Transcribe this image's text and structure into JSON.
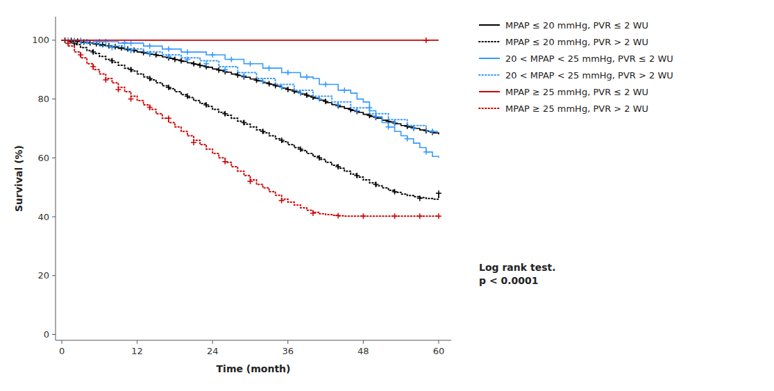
{
  "chart_data": {
    "type": "step",
    "xlabel": "Time (month)",
    "ylabel": "Survival (%)",
    "xlim": [
      -1,
      62
    ],
    "ylim": [
      -2,
      108
    ],
    "xticks": [
      0,
      12,
      24,
      36,
      48,
      60
    ],
    "yticks": [
      0,
      20,
      40,
      60,
      80,
      100
    ],
    "grid": false,
    "legend": "right",
    "marker": "plus",
    "annotation": "Log rank test.\np < 0.0001",
    "series": [
      {
        "name": "MPAP ≤ 20 mmHg, PVR ≤ 2 WU",
        "color": "#000000",
        "line_style": "solid",
        "x": [
          0,
          0.5,
          1,
          2,
          3,
          4,
          5,
          6,
          7,
          8,
          9,
          10,
          11,
          12,
          13,
          14,
          15,
          16,
          17,
          18,
          19,
          20,
          21,
          22,
          23,
          24,
          25,
          26,
          27,
          28,
          29,
          30,
          31,
          32,
          33,
          34,
          35,
          36,
          37,
          38,
          39,
          40,
          41,
          42,
          43,
          44,
          45,
          46,
          47,
          48,
          49,
          50,
          51,
          52,
          53,
          54,
          55,
          56,
          57,
          58,
          59,
          60
        ],
        "values": [
          100,
          100,
          99.8,
          99.6,
          99.3,
          99.0,
          98.7,
          98.3,
          98.0,
          97.6,
          97.2,
          96.8,
          96.4,
          96.0,
          95.6,
          95.2,
          94.8,
          94.3,
          93.8,
          93.3,
          92.8,
          92.3,
          91.8,
          91.3,
          90.8,
          90.2,
          89.7,
          89.1,
          88.5,
          88.0,
          87.4,
          86.8,
          86.2,
          85.5,
          85.0,
          84.4,
          83.7,
          83.1,
          82.4,
          81.7,
          81.0,
          80.3,
          79.6,
          78.8,
          78.1,
          77.4,
          76.8,
          76.1,
          75.5,
          74.8,
          74.1,
          73.5,
          72.8,
          72.2,
          71.6,
          71.0,
          70.5,
          70.0,
          69.5,
          69.0,
          68.5,
          68.0
        ],
        "censor_x": [
          0.5,
          1.5,
          2.5,
          3.5,
          4.5,
          5.5,
          6.5,
          7.5,
          8.5,
          9.5,
          10.5,
          11.5,
          13,
          14,
          15,
          17,
          18,
          19,
          21,
          22,
          23,
          25,
          26,
          28,
          29,
          31,
          33,
          34,
          36,
          37,
          39,
          40,
          42,
          44,
          46,
          47,
          49,
          50,
          52,
          53,
          55,
          56,
          58,
          59
        ],
        "censor_y": [
          100,
          99.9,
          99.7,
          99.4,
          99.1,
          98.8,
          98.5,
          98.1,
          97.8,
          97.4,
          97.0,
          96.6,
          95.8,
          95.4,
          95.0,
          94.0,
          93.5,
          93.0,
          92.0,
          91.5,
          91.0,
          89.9,
          89.3,
          88.2,
          87.6,
          86.4,
          85.2,
          84.6,
          83.3,
          82.7,
          81.3,
          80.6,
          79.2,
          77.7,
          76.4,
          75.8,
          74.4,
          73.8,
          72.4,
          71.8,
          70.7,
          70.2,
          69.2,
          68.7
        ]
      },
      {
        "name": "MPAP ≤ 20 mmHg, PVR > 2 WU",
        "color": "#000000",
        "line_style": "dotted",
        "x": [
          0,
          1,
          2,
          3,
          4,
          5,
          6,
          7,
          8,
          9,
          10,
          11,
          12,
          13,
          14,
          15,
          16,
          17,
          18,
          19,
          20,
          21,
          22,
          23,
          24,
          25,
          26,
          27,
          28,
          29,
          30,
          31,
          32,
          33,
          34,
          35,
          36,
          37,
          38,
          39,
          40,
          41,
          42,
          43,
          44,
          45,
          46,
          47,
          48,
          49,
          50,
          51,
          52,
          53,
          54,
          55,
          56,
          57,
          58,
          59,
          60
        ],
        "values": [
          100,
          99.5,
          98.5,
          97.5,
          96.5,
          95.5,
          94.5,
          93.5,
          92.5,
          91.5,
          90.5,
          89.5,
          88.5,
          87.5,
          86.5,
          85.5,
          84.5,
          83.5,
          82.5,
          81.5,
          80.5,
          79.5,
          78.5,
          77.5,
          76.5,
          75.5,
          74.5,
          73.5,
          72.5,
          71.5,
          70.5,
          69.5,
          68.5,
          67.5,
          66.5,
          65.5,
          64.5,
          63.5,
          62.5,
          61.5,
          60.5,
          59.5,
          58.5,
          57.5,
          56.5,
          55.5,
          54.5,
          53.5,
          52.5,
          51.5,
          50.5,
          49.8,
          49.0,
          48.3,
          47.7,
          47.2,
          46.8,
          46.5,
          46.2,
          46.0,
          48.0
        ],
        "censor_x": [
          2,
          5,
          8,
          11,
          14,
          17,
          20,
          23,
          26,
          29,
          32,
          35,
          38,
          41,
          44,
          47,
          50,
          53,
          57,
          60
        ],
        "censor_y": [
          99.0,
          96.0,
          93.0,
          90.0,
          87.0,
          84.0,
          81.0,
          78.0,
          75.0,
          72.0,
          69.0,
          66.0,
          63.0,
          60.0,
          57.0,
          54.0,
          51.0,
          48.5,
          46.3,
          48.0
        ]
      },
      {
        "name": "20 < MPAP < 25 mmHg, PVR ≤ 2 WU",
        "color": "#3399ff",
        "line_style": "solid",
        "x": [
          0,
          4,
          5,
          8,
          9,
          12,
          13,
          15,
          16,
          18,
          19,
          22,
          23,
          25,
          26,
          28,
          29,
          31,
          32,
          34,
          35,
          37,
          38,
          40,
          41,
          43,
          44,
          46,
          47,
          48,
          49,
          50,
          51,
          52,
          53,
          54,
          55,
          56,
          57,
          58,
          59,
          60
        ],
        "values": [
          100,
          100,
          99.5,
          99.5,
          99.0,
          99.0,
          98.0,
          98.0,
          97.0,
          97.0,
          96.0,
          96.0,
          95.0,
          95.0,
          93.5,
          93.5,
          92.0,
          92.0,
          90.5,
          90.5,
          89.0,
          89.0,
          87.5,
          87.0,
          85.0,
          85.0,
          83.0,
          82.0,
          80.0,
          79.0,
          76.0,
          74.0,
          72.0,
          70.5,
          69.0,
          67.5,
          66.5,
          65.0,
          63.5,
          62.0,
          60.5,
          60.0
        ],
        "censor_x": [
          1,
          2,
          3,
          6,
          7,
          10,
          11,
          14,
          17,
          20,
          24,
          27,
          30,
          33,
          36,
          39,
          42,
          45,
          49,
          52,
          55,
          58
        ],
        "censor_y": [
          100,
          100,
          100,
          99.5,
          99.5,
          99.2,
          99.0,
          98.0,
          97.0,
          96.0,
          95.0,
          93.5,
          92.0,
          90.5,
          89.0,
          87.5,
          85.0,
          83.0,
          77.0,
          70.5,
          66.5,
          62.0
        ]
      },
      {
        "name": "20 < MPAP < 25 mmHg, PVR > 2 WU",
        "color": "#3399ff",
        "line_style": "dotted",
        "x": [
          0,
          2,
          3,
          5,
          6,
          9,
          10,
          12,
          13,
          15,
          16,
          18,
          19,
          21,
          22,
          24,
          25,
          27,
          28,
          30,
          31,
          33,
          34,
          36,
          37,
          39,
          40,
          42,
          43,
          45,
          46,
          48,
          49,
          51,
          52,
          54,
          55,
          57,
          58,
          60
        ],
        "values": [
          100,
          100,
          99.0,
          99.0,
          98.0,
          98.0,
          97.0,
          97.0,
          96.0,
          96.0,
          95.0,
          95.0,
          94.0,
          94.0,
          93.0,
          93.0,
          91.0,
          91.0,
          89.0,
          89.0,
          87.0,
          87.0,
          85.0,
          85.0,
          83.0,
          83.0,
          81.0,
          81.0,
          79.0,
          79.0,
          77.0,
          77.0,
          75.0,
          75.0,
          73.0,
          73.0,
          71.0,
          71.0,
          69.0,
          69.0
        ],
        "censor_x": [
          4,
          8,
          11,
          14,
          17,
          20,
          23,
          26,
          29,
          32,
          35,
          38,
          41,
          44,
          47,
          50,
          53,
          56,
          59
        ],
        "censor_y": [
          99.5,
          97.5,
          96.5,
          95.5,
          94.5,
          93.5,
          92.0,
          90.0,
          88.0,
          86.0,
          84.0,
          82.0,
          80.0,
          78.0,
          76.0,
          74.0,
          72.0,
          70.0,
          69.0
        ]
      },
      {
        "name": "MPAP ≥ 25 mmHg, PVR ≤ 2 WU",
        "color": "#cc0000",
        "line_style": "solid",
        "x": [
          0,
          55,
          56,
          57,
          58,
          59,
          60
        ],
        "values": [
          100,
          100,
          100,
          100,
          100,
          100,
          100
        ],
        "censor_x": [
          58
        ],
        "censor_y": [
          100
        ]
      },
      {
        "name": "MPAP ≥ 25 mmHg, PVR > 2 WU",
        "color": "#cc0000",
        "line_style": "dotted",
        "x": [
          0,
          1,
          2,
          3,
          4,
          5,
          6,
          7,
          8,
          9,
          10,
          11,
          12,
          13,
          14,
          15,
          16,
          17,
          18,
          19,
          20,
          21,
          22,
          23,
          24,
          25,
          26,
          27,
          28,
          29,
          30,
          31,
          32,
          33,
          34,
          35,
          36,
          37,
          38,
          39,
          40,
          41,
          42,
          43,
          44,
          45,
          46,
          47,
          48,
          49,
          50,
          51,
          52,
          53,
          54,
          55,
          56,
          57,
          58,
          59,
          60
        ],
        "values": [
          100,
          98.0,
          96.0,
          94.0,
          92.0,
          90.0,
          88.5,
          87.0,
          85.5,
          84.0,
          82.5,
          81.0,
          79.5,
          78.0,
          76.5,
          75.0,
          73.5,
          72.0,
          70.5,
          69.0,
          67.5,
          66.0,
          64.5,
          63.0,
          61.5,
          60.0,
          58.5,
          57.0,
          55.5,
          54.0,
          52.5,
          51.0,
          49.8,
          48.5,
          47.3,
          46.0,
          45.0,
          44.0,
          43.0,
          42.2,
          41.5,
          41.0,
          40.7,
          40.5,
          40.3,
          40.2,
          40.2,
          40.2,
          40.2,
          40.2,
          40.2,
          40.2,
          40.2,
          40.2,
          40.2,
          40.2,
          40.2,
          40.2,
          40.2,
          40.2,
          40.2
        ],
        "censor_x": [
          1,
          3,
          5,
          7,
          9,
          11,
          14,
          17,
          21,
          26,
          30,
          35,
          40,
          44,
          48,
          53,
          57,
          60
        ],
        "censor_y": [
          99.0,
          95.0,
          91.0,
          86.5,
          83.2,
          80.0,
          77.2,
          73.5,
          65.2,
          58.7,
          52.0,
          45.5,
          41.2,
          40.4,
          40.2,
          40.2,
          40.2,
          40.2
        ]
      }
    ]
  }
}
